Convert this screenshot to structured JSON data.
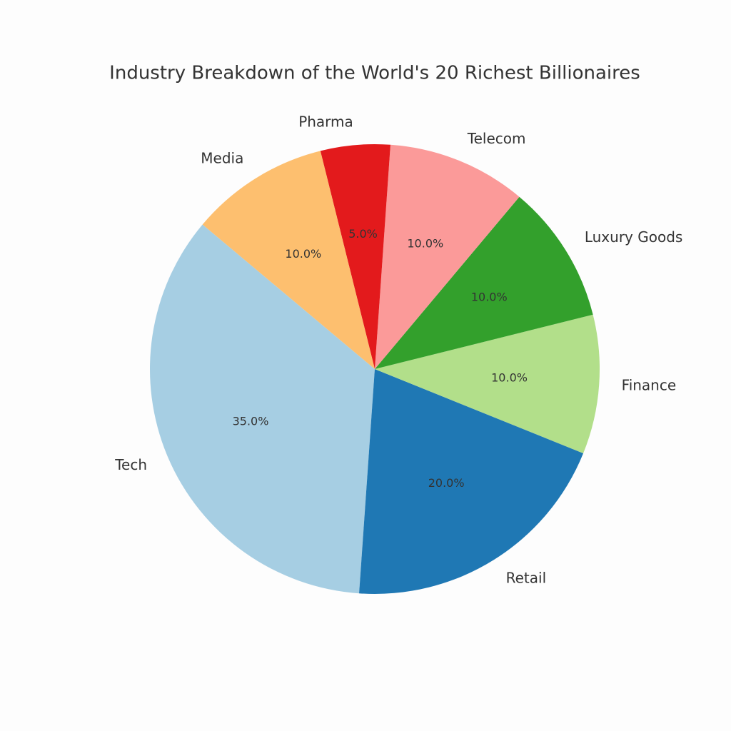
{
  "chart_data": {
    "type": "pie",
    "title": "Industry Breakdown of the World's 20 Richest Billionaires",
    "categories": [
      "Tech",
      "Retail",
      "Finance",
      "Luxury Goods",
      "Telecom",
      "Pharma",
      "Media"
    ],
    "values": [
      35,
      20,
      10,
      10,
      10,
      5,
      10
    ],
    "value_labels": [
      "35.0%",
      "20.0%",
      "10.0%",
      "10.0%",
      "10.0%",
      "5.0%",
      "10.0%"
    ],
    "colors": [
      "#a6cee3",
      "#1f78b4",
      "#b2df8a",
      "#33a02c",
      "#fb9a99",
      "#e31a1c",
      "#fdbf6f"
    ]
  }
}
